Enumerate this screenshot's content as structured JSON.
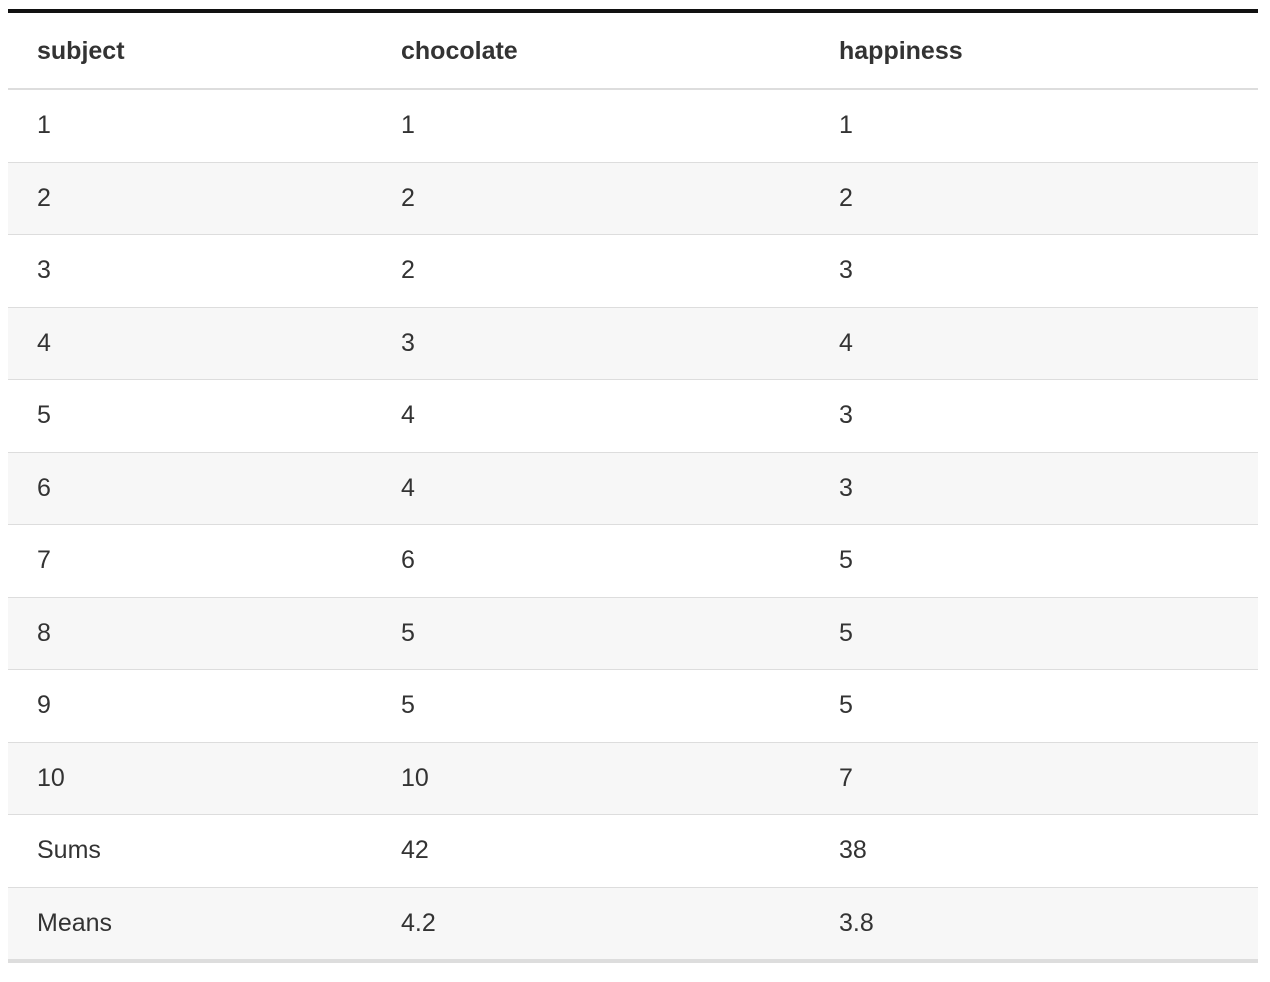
{
  "table": {
    "headers": [
      "subject",
      "chocolate",
      "happiness"
    ],
    "rows": [
      [
        "1",
        "1",
        "1"
      ],
      [
        "2",
        "2",
        "2"
      ],
      [
        "3",
        "2",
        "3"
      ],
      [
        "4",
        "3",
        "4"
      ],
      [
        "5",
        "4",
        "3"
      ],
      [
        "6",
        "4",
        "3"
      ],
      [
        "7",
        "6",
        "5"
      ],
      [
        "8",
        "5",
        "5"
      ],
      [
        "9",
        "5",
        "5"
      ],
      [
        "10",
        "10",
        "7"
      ],
      [
        "Sums",
        "42",
        "38"
      ],
      [
        "Means",
        "4.2",
        "3.8"
      ]
    ]
  },
  "colors": {
    "text": "#333333",
    "top_rule": "#111111",
    "row_border": "#dddddd",
    "stripe": "#f7f7f7"
  }
}
